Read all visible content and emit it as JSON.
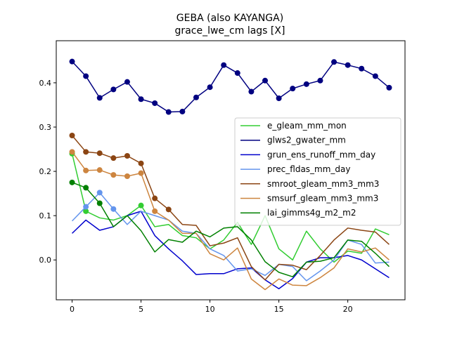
{
  "chart_data": {
    "type": "line",
    "title": "GEBA (also KAYANGA)",
    "subtitle": "grace_lwe_cm lags [X]",
    "xlabel": "",
    "ylabel": "",
    "xlim": [
      -1.15,
      24.15
    ],
    "ylim": [
      -0.09,
      0.495
    ],
    "xticks": [
      0,
      5,
      10,
      15,
      20
    ],
    "yticks": [
      0.0,
      0.1,
      0.2,
      0.3,
      0.4
    ],
    "ytick_labels": [
      "0.0",
      "0.1",
      "0.2",
      "0.3",
      "0.4"
    ],
    "grid": false,
    "legend_position": "center-right",
    "series": [
      {
        "name": "e_gleam_mm_mon",
        "color": "#32cd32",
        "values": [
          0.24,
          0.11,
          0.095,
          0.09,
          0.1,
          0.123,
          0.075,
          0.08,
          0.055,
          0.05,
          0.025,
          0.045,
          0.085,
          0.035,
          0.1,
          0.025,
          0.0,
          0.065,
          0.025,
          -0.005,
          0.02,
          0.015,
          0.07,
          0.057
        ],
        "markers": [
          0,
          1,
          5
        ]
      },
      {
        "name": "glws2_gwater_mm",
        "color": "#000080",
        "values": [
          0.448,
          0.415,
          0.366,
          0.385,
          0.402,
          0.363,
          0.354,
          0.334,
          0.335,
          0.367,
          0.39,
          0.44,
          0.422,
          0.38,
          0.405,
          0.365,
          0.387,
          0.397,
          0.405,
          0.447,
          0.44,
          0.432,
          0.415,
          0.389
        ],
        "markers": "all"
      },
      {
        "name": "grun_ens_runoff_mm_day",
        "color": "#0000cd",
        "values": [
          0.06,
          0.09,
          0.067,
          0.075,
          0.1,
          0.11,
          0.055,
          0.025,
          -0.002,
          -0.033,
          -0.031,
          -0.031,
          -0.02,
          -0.018,
          -0.045,
          -0.065,
          -0.042,
          -0.005,
          0.005,
          0.005,
          0.01,
          0.0,
          -0.02,
          -0.04
        ],
        "markers": []
      },
      {
        "name": "prec_fldas_mm_day",
        "color": "#6495ed",
        "values": [
          0.088,
          0.12,
          0.152,
          0.115,
          0.08,
          0.11,
          0.1,
          0.09,
          0.065,
          0.06,
          0.025,
          0.01,
          -0.025,
          -0.02,
          -0.035,
          -0.01,
          -0.015,
          -0.047,
          -0.025,
          0.0,
          0.045,
          0.035,
          -0.007,
          -0.005
        ],
        "markers": [
          1,
          2,
          3
        ]
      },
      {
        "name": "smroot_gleam_mm3_mm3",
        "color": "#8b4513",
        "values": [
          0.281,
          0.244,
          0.241,
          0.23,
          0.235,
          0.218,
          0.139,
          0.114,
          0.08,
          0.078,
          0.032,
          0.038,
          0.05,
          -0.015,
          -0.045,
          -0.01,
          -0.012,
          -0.022,
          0.01,
          0.045,
          0.072,
          0.067,
          0.063,
          0.035
        ],
        "markers": [
          0,
          1,
          2,
          3,
          4,
          5,
          6,
          7
        ]
      },
      {
        "name": "smsurf_gleam_mm3_mm3",
        "color": "#cd853f",
        "values": [
          0.244,
          0.202,
          0.203,
          0.192,
          0.189,
          0.196,
          0.11,
          0.09,
          0.06,
          0.06,
          0.014,
          0.0,
          0.027,
          -0.043,
          -0.067,
          -0.043,
          -0.057,
          -0.058,
          -0.04,
          -0.018,
          0.025,
          0.018,
          0.027,
          0.0
        ],
        "markers": [
          0,
          1,
          2,
          3,
          4,
          5,
          6
        ]
      },
      {
        "name": "lai_gimms4g_m2_m2",
        "color": "#008000",
        "values": [
          0.175,
          0.163,
          0.128,
          0.075,
          0.1,
          0.066,
          0.018,
          0.046,
          0.04,
          0.065,
          0.052,
          0.072,
          0.075,
          0.045,
          -0.004,
          -0.028,
          -0.038,
          -0.005,
          -0.003,
          0.005,
          0.045,
          0.042,
          0.015,
          -0.015
        ],
        "markers": [
          0,
          1,
          2
        ]
      }
    ]
  }
}
